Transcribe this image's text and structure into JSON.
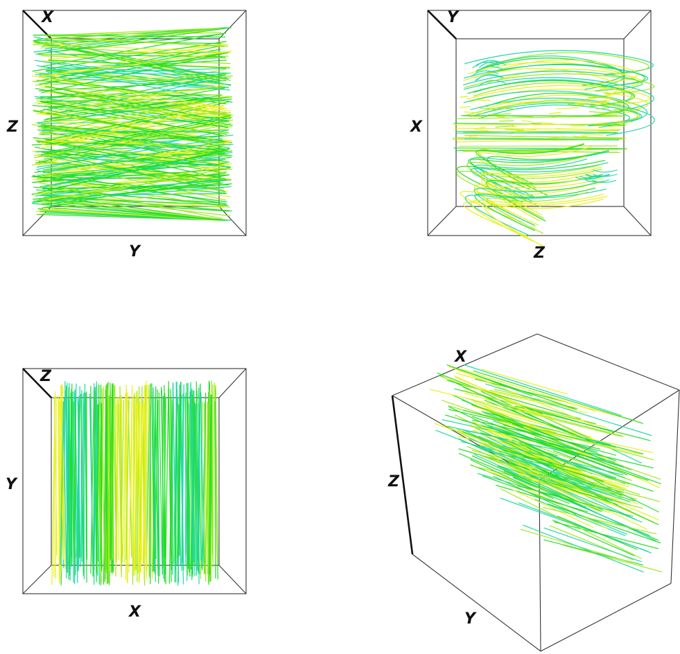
{
  "colors": {
    "yellow": "#e8f018",
    "lime": "#9ee81a",
    "green": "#22dd22",
    "teal": "#22d8a8",
    "frame": "#222222"
  },
  "views": [
    {
      "id": "view-x-top",
      "labels": {
        "corner": "X",
        "left": "Z",
        "bottom": "Y"
      },
      "pattern": "diagonal-crossing"
    },
    {
      "id": "view-y-top",
      "labels": {
        "corner": "Y",
        "left": "X",
        "bottom": "Z"
      },
      "pattern": "swirl"
    },
    {
      "id": "view-z-top",
      "labels": {
        "corner": "Z",
        "left": "Y",
        "bottom": "X"
      },
      "pattern": "vertical-bands"
    },
    {
      "id": "view-isometric",
      "labels": {
        "top": "X",
        "left": "Z",
        "bottom": "Y"
      },
      "pattern": "oblique"
    }
  ]
}
